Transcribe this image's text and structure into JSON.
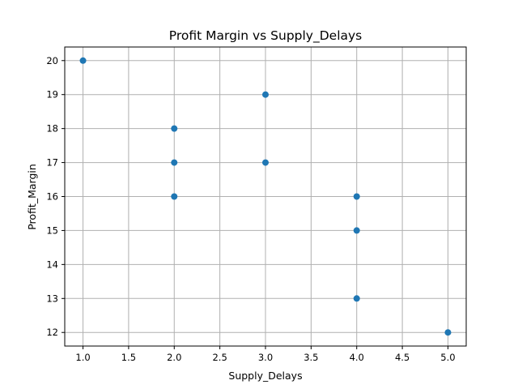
{
  "chart_data": {
    "type": "scatter",
    "title": "Profit Margin vs Supply_Delays",
    "xlabel": "Supply_Delays",
    "ylabel": "Profit_Margin",
    "xlim": [
      0.8,
      5.2
    ],
    "ylim": [
      11.6,
      20.4
    ],
    "xticks": [
      1.0,
      1.5,
      2.0,
      2.5,
      3.0,
      3.5,
      4.0,
      4.5,
      5.0
    ],
    "xtick_labels": [
      "1.0",
      "1.5",
      "2.0",
      "2.5",
      "3.0",
      "3.5",
      "4.0",
      "4.5",
      "5.0"
    ],
    "yticks": [
      12,
      13,
      14,
      15,
      16,
      17,
      18,
      19,
      20
    ],
    "ytick_labels": [
      "12",
      "13",
      "14",
      "15",
      "16",
      "17",
      "18",
      "19",
      "20"
    ],
    "grid": true,
    "points": [
      {
        "x": 1,
        "y": 20
      },
      {
        "x": 2,
        "y": 18
      },
      {
        "x": 2,
        "y": 17
      },
      {
        "x": 2,
        "y": 16
      },
      {
        "x": 3,
        "y": 19
      },
      {
        "x": 3,
        "y": 17
      },
      {
        "x": 4,
        "y": 16
      },
      {
        "x": 4,
        "y": 15
      },
      {
        "x": 4,
        "y": 13
      },
      {
        "x": 5,
        "y": 12
      }
    ],
    "marker_color": "#1f77b4"
  }
}
